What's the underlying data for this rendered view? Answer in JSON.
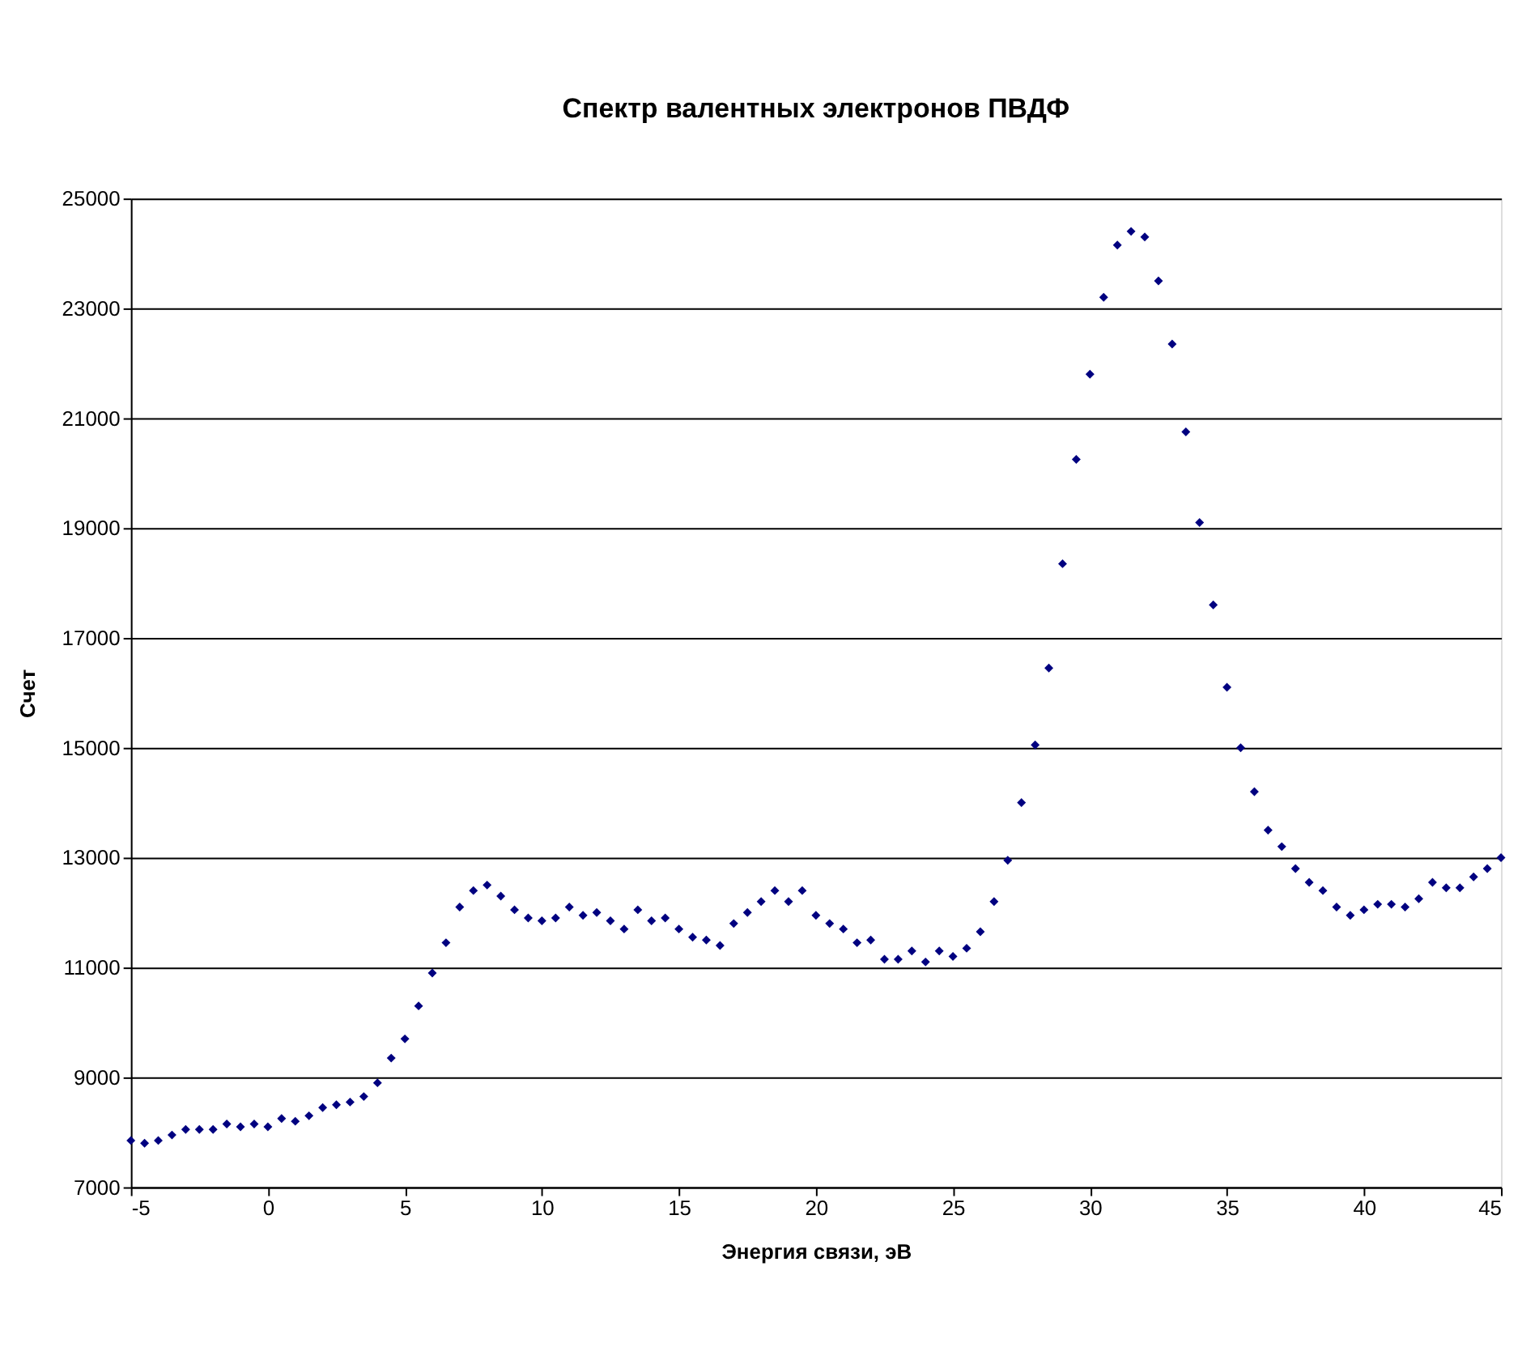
{
  "chart_data": {
    "type": "scatter",
    "title": "Спектр валентных электронов ПВДФ",
    "xlabel": "Энергия связи, эВ",
    "ylabel": "Счет",
    "x": [
      -5,
      -4.5,
      -4,
      -3.5,
      -3,
      -2.5,
      -2,
      -1.5,
      -1,
      -0.5,
      0,
      0.5,
      1,
      1.5,
      2,
      2.5,
      3,
      3.5,
      4,
      4.5,
      5,
      5.5,
      6,
      6.5,
      7,
      7.5,
      8,
      8.5,
      9,
      9.5,
      10,
      10.5,
      11,
      11.5,
      12,
      12.5,
      13,
      13.5,
      14,
      14.5,
      15,
      15.5,
      16,
      16.5,
      17,
      17.5,
      18,
      18.5,
      19,
      19.5,
      20,
      20.5,
      21,
      21.5,
      22,
      22.5,
      23,
      23.5,
      24,
      24.5,
      25,
      25.5,
      26,
      26.5,
      27,
      27.5,
      28,
      28.5,
      29,
      29.5,
      30,
      30.5,
      31,
      31.5,
      32,
      32.5,
      33,
      33.5,
      34,
      34.5,
      35,
      35.5,
      36,
      36.5,
      37,
      37.5,
      38,
      38.5,
      39,
      39.5,
      40,
      40.5,
      41,
      41.5,
      42,
      42.5,
      43,
      43.5,
      44,
      44.5,
      45
    ],
    "series": [
      {
        "color": "#000080",
        "values": [
          7850,
          7800,
          7850,
          7950,
          8050,
          8050,
          8050,
          8150,
          8100,
          8150,
          8100,
          8250,
          8200,
          8300,
          8450,
          8500,
          8550,
          8650,
          8900,
          9350,
          9700,
          10300,
          10900,
          11450,
          12100,
          12400,
          12500,
          12300,
          12050,
          11900,
          11850,
          11900,
          12100,
          11950,
          12000,
          11850,
          11700,
          12050,
          11850,
          11900,
          11700,
          11550,
          11500,
          11400,
          11800,
          12000,
          12200,
          12400,
          12200,
          12400,
          11950,
          11800,
          11700,
          11450,
          11500,
          11150,
          11150,
          11300,
          11100,
          11300,
          11200,
          11350,
          11650,
          12200,
          12950,
          14000,
          15050,
          16450,
          18350,
          20250,
          21800,
          23200,
          24150,
          24400,
          24300,
          23500,
          22350,
          20750,
          19100,
          17600,
          16100,
          15000,
          14200,
          13500,
          13200,
          12800,
          12550,
          12400,
          12100,
          11950,
          12050,
          12150,
          12150,
          12100,
          12250,
          12550,
          12450,
          12450,
          12650,
          12800,
          13000
        ]
      }
    ],
    "xlim": [
      -5,
      45
    ],
    "xticks": [
      -5,
      0,
      5,
      10,
      15,
      20,
      25,
      30,
      35,
      40,
      45
    ],
    "ylim": [
      7000,
      25000
    ],
    "yticks": [
      7000,
      9000,
      11000,
      13000,
      15000,
      17000,
      19000,
      21000,
      23000,
      25000
    ],
    "grid": "y",
    "marker": "diamond"
  }
}
